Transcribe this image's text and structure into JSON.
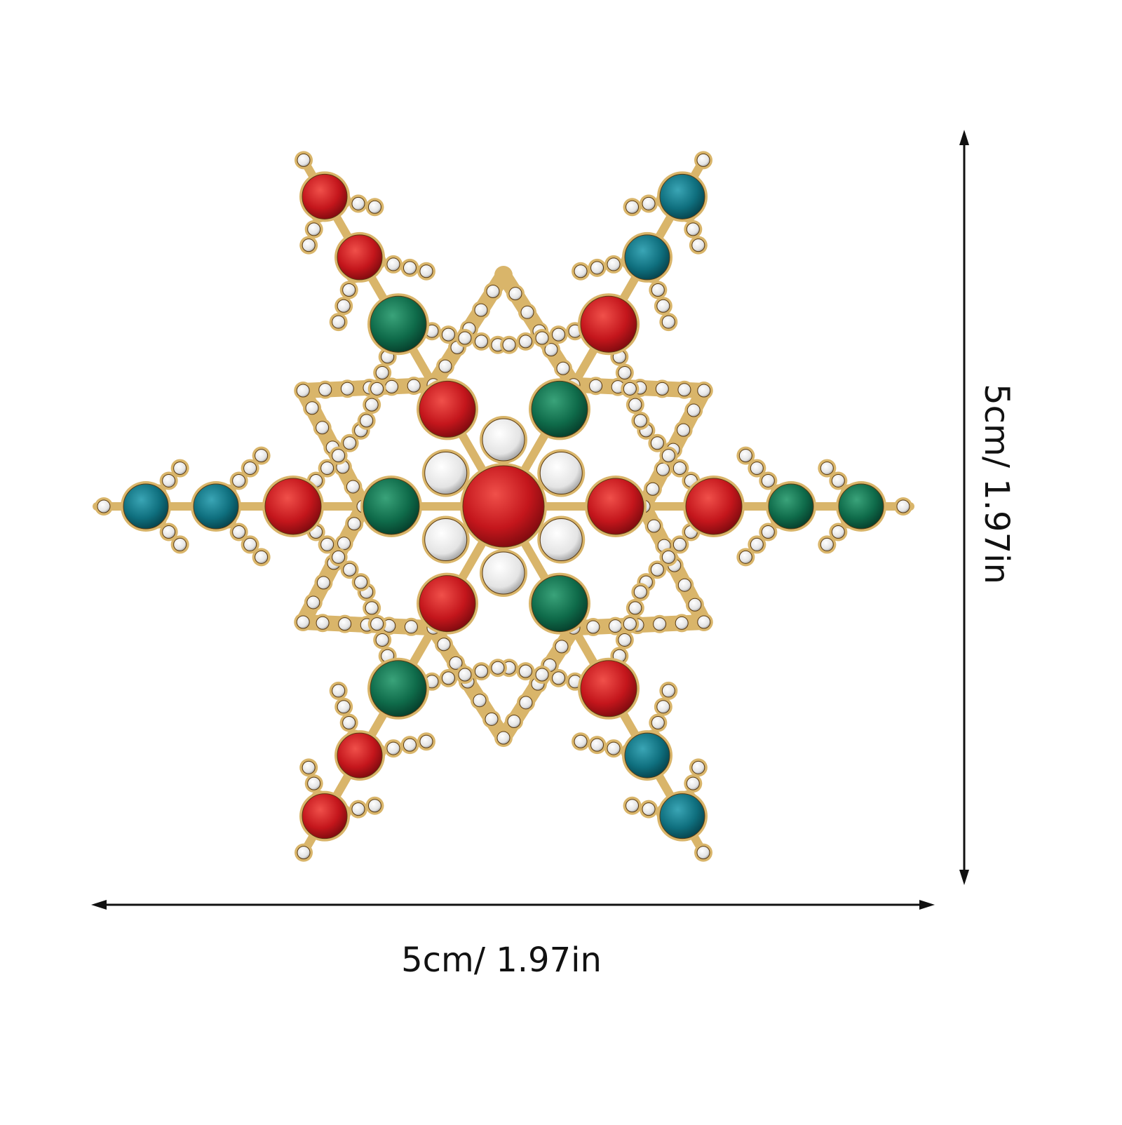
{
  "dimensions": {
    "width_label": "5cm/ 1.97in",
    "height_label": "5cm/ 1.97in"
  }
}
